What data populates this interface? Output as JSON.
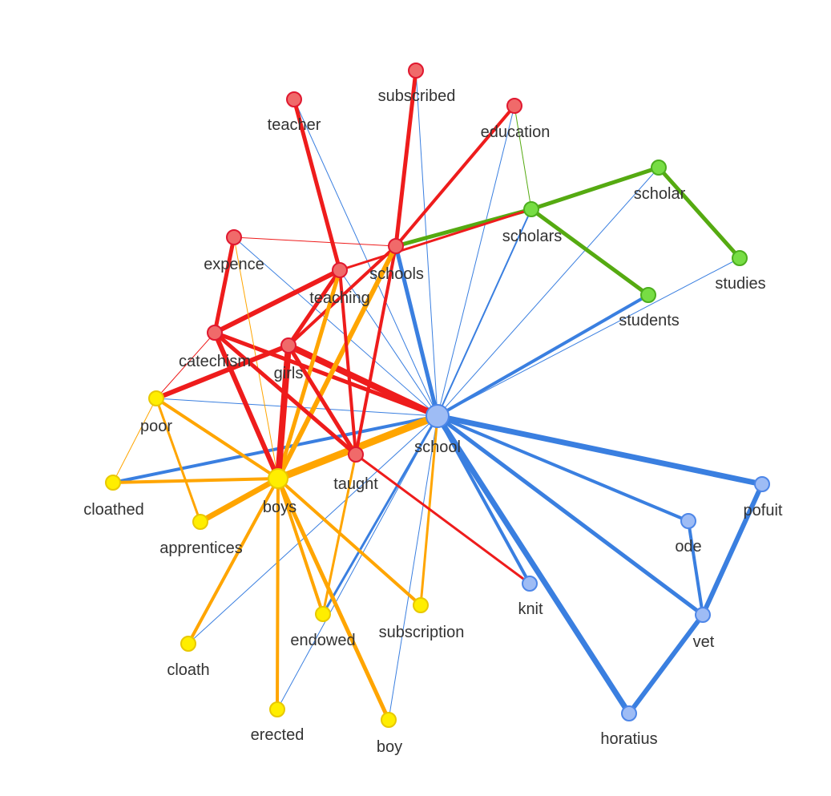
{
  "colors": {
    "red": "#ee1c1c",
    "orange": "#ffa500",
    "green": "#55aa11",
    "blue": "#3a7fe0",
    "node_red": "#f06a6a",
    "node_yellow": "#ffee00",
    "node_green": "#77dd44",
    "node_blue": "#9ebcf5"
  },
  "graph": {
    "nodes": [
      {
        "id": "subscribed",
        "label": "subscribed",
        "group": "red"
      },
      {
        "id": "teacher",
        "label": "teacher",
        "group": "red"
      },
      {
        "id": "education",
        "label": "education",
        "group": "red"
      },
      {
        "id": "expence",
        "label": "expence",
        "group": "red"
      },
      {
        "id": "schools",
        "label": "schools",
        "group": "red"
      },
      {
        "id": "teaching",
        "label": "teaching",
        "group": "red"
      },
      {
        "id": "catechism",
        "label": "catechism",
        "group": "red"
      },
      {
        "id": "girls",
        "label": "girls",
        "group": "red"
      },
      {
        "id": "taught",
        "label": "taught",
        "group": "red"
      },
      {
        "id": "scholars",
        "label": "scholars",
        "group": "green"
      },
      {
        "id": "scholar",
        "label": "scholar",
        "group": "green"
      },
      {
        "id": "studies",
        "label": "studies",
        "group": "green"
      },
      {
        "id": "students",
        "label": "students",
        "group": "green"
      },
      {
        "id": "poor",
        "label": "poor",
        "group": "yellow"
      },
      {
        "id": "cloathed",
        "label": "cloathed",
        "group": "yellow"
      },
      {
        "id": "boys",
        "label": "boys",
        "group": "yellow"
      },
      {
        "id": "apprentices",
        "label": "apprentices",
        "group": "yellow"
      },
      {
        "id": "endowed",
        "label": "endowed",
        "group": "yellow"
      },
      {
        "id": "subscription",
        "label": "subscription",
        "group": "yellow"
      },
      {
        "id": "cloath",
        "label": "cloath",
        "group": "yellow"
      },
      {
        "id": "erected",
        "label": "erected",
        "group": "yellow"
      },
      {
        "id": "boy",
        "label": "boy",
        "group": "yellow"
      },
      {
        "id": "school",
        "label": "school",
        "group": "blue"
      },
      {
        "id": "pofuit",
        "label": "pofuit",
        "group": "blue"
      },
      {
        "id": "ode",
        "label": "ode",
        "group": "blue"
      },
      {
        "id": "knit",
        "label": "knit",
        "group": "blue"
      },
      {
        "id": "vet",
        "label": "vet",
        "group": "blue"
      },
      {
        "id": "horatius",
        "label": "horatius",
        "group": "blue"
      }
    ],
    "edges": [
      {
        "from": "school",
        "to": "pofuit",
        "color": "blue",
        "weight": 7
      },
      {
        "from": "school",
        "to": "horatius",
        "color": "blue",
        "weight": 7
      },
      {
        "from": "school",
        "to": "vet",
        "color": "blue",
        "weight": 5
      },
      {
        "from": "school",
        "to": "ode",
        "color": "blue",
        "weight": 4
      },
      {
        "from": "school",
        "to": "knit",
        "color": "blue",
        "weight": 4
      },
      {
        "from": "school",
        "to": "students",
        "color": "blue",
        "weight": 4
      },
      {
        "from": "school",
        "to": "schools",
        "color": "blue",
        "weight": 5
      },
      {
        "from": "school",
        "to": "cloathed",
        "color": "blue",
        "weight": 4
      },
      {
        "from": "school",
        "to": "endowed",
        "color": "blue",
        "weight": 3
      },
      {
        "from": "school",
        "to": "scholars",
        "color": "blue",
        "weight": 2
      },
      {
        "from": "school",
        "to": "scholar",
        "color": "blue",
        "weight": 1
      },
      {
        "from": "school",
        "to": "studies",
        "color": "blue",
        "weight": 1
      },
      {
        "from": "school",
        "to": "subscribed",
        "color": "blue",
        "weight": 1
      },
      {
        "from": "school",
        "to": "education",
        "color": "blue",
        "weight": 1
      },
      {
        "from": "school",
        "to": "teacher",
        "color": "blue",
        "weight": 1
      },
      {
        "from": "school",
        "to": "expence",
        "color": "blue",
        "weight": 1
      },
      {
        "from": "school",
        "to": "poor",
        "color": "blue",
        "weight": 1
      },
      {
        "from": "school",
        "to": "cloath",
        "color": "blue",
        "weight": 1
      },
      {
        "from": "school",
        "to": "boy",
        "color": "blue",
        "weight": 1
      },
      {
        "from": "school",
        "to": "erected",
        "color": "blue",
        "weight": 1
      },
      {
        "from": "school",
        "to": "teaching",
        "color": "blue",
        "weight": 1
      },
      {
        "from": "school",
        "to": "girls",
        "color": "red",
        "weight": 8
      },
      {
        "from": "school",
        "to": "catechism",
        "color": "red",
        "weight": 5
      },
      {
        "from": "school",
        "to": "boys",
        "color": "orange",
        "weight": 9
      },
      {
        "from": "school",
        "to": "subscription",
        "color": "orange",
        "weight": 3
      },
      {
        "from": "pofuit",
        "to": "vet",
        "color": "blue",
        "weight": 6
      },
      {
        "from": "vet",
        "to": "horatius",
        "color": "blue",
        "weight": 6
      },
      {
        "from": "ode",
        "to": "vet",
        "color": "blue",
        "weight": 4
      },
      {
        "from": "scholars",
        "to": "scholar",
        "color": "green",
        "weight": 5
      },
      {
        "from": "scholar",
        "to": "studies",
        "color": "green",
        "weight": 5
      },
      {
        "from": "scholars",
        "to": "students",
        "color": "green",
        "weight": 5
      },
      {
        "from": "scholars",
        "to": "schools",
        "color": "green",
        "weight": 5
      },
      {
        "from": "scholars",
        "to": "education",
        "color": "green",
        "weight": 1
      },
      {
        "from": "scholars",
        "to": "teaching",
        "color": "red",
        "weight": 3
      },
      {
        "from": "schools",
        "to": "subscribed",
        "color": "red",
        "weight": 5
      },
      {
        "from": "schools",
        "to": "education",
        "color": "red",
        "weight": 4
      },
      {
        "from": "schools",
        "to": "taught",
        "color": "red",
        "weight": 4
      },
      {
        "from": "schools",
        "to": "girls",
        "color": "red",
        "weight": 4
      },
      {
        "from": "schools",
        "to": "expence",
        "color": "red",
        "weight": 1
      },
      {
        "from": "schools",
        "to": "boys",
        "color": "orange",
        "weight": 6
      },
      {
        "from": "teacher",
        "to": "teaching",
        "color": "red",
        "weight": 5
      },
      {
        "from": "teaching",
        "to": "catechism",
        "color": "red",
        "weight": 6
      },
      {
        "from": "teaching",
        "to": "girls",
        "color": "red",
        "weight": 5
      },
      {
        "from": "teaching",
        "to": "taught",
        "color": "red",
        "weight": 4
      },
      {
        "from": "teaching",
        "to": "boys",
        "color": "orange",
        "weight": 5
      },
      {
        "from": "expence",
        "to": "catechism",
        "color": "red",
        "weight": 5
      },
      {
        "from": "expence",
        "to": "boys",
        "color": "orange",
        "weight": 1
      },
      {
        "from": "catechism",
        "to": "boys",
        "color": "red",
        "weight": 6
      },
      {
        "from": "catechism",
        "to": "taught",
        "color": "red",
        "weight": 5
      },
      {
        "from": "catechism",
        "to": "poor",
        "color": "red",
        "weight": 1
      },
      {
        "from": "girls",
        "to": "boys",
        "color": "red",
        "weight": 8
      },
      {
        "from": "girls",
        "to": "taught",
        "color": "red",
        "weight": 5
      },
      {
        "from": "girls",
        "to": "poor",
        "color": "red",
        "weight": 6
      },
      {
        "from": "taught",
        "to": "knit",
        "color": "red",
        "weight": 3
      },
      {
        "from": "taught",
        "to": "endowed",
        "color": "orange",
        "weight": 3
      },
      {
        "from": "boys",
        "to": "poor",
        "color": "orange",
        "weight": 4
      },
      {
        "from": "boys",
        "to": "cloathed",
        "color": "orange",
        "weight": 4
      },
      {
        "from": "boys",
        "to": "apprentices",
        "color": "orange",
        "weight": 7
      },
      {
        "from": "boys",
        "to": "endowed",
        "color": "orange",
        "weight": 4
      },
      {
        "from": "boys",
        "to": "subscription",
        "color": "orange",
        "weight": 4
      },
      {
        "from": "boys",
        "to": "cloath",
        "color": "orange",
        "weight": 4
      },
      {
        "from": "boys",
        "to": "erected",
        "color": "orange",
        "weight": 4
      },
      {
        "from": "boys",
        "to": "boy",
        "color": "orange",
        "weight": 5
      },
      {
        "from": "poor",
        "to": "apprentices",
        "color": "orange",
        "weight": 3
      },
      {
        "from": "poor",
        "to": "cloathed",
        "color": "orange",
        "weight": 1
      }
    ]
  }
}
